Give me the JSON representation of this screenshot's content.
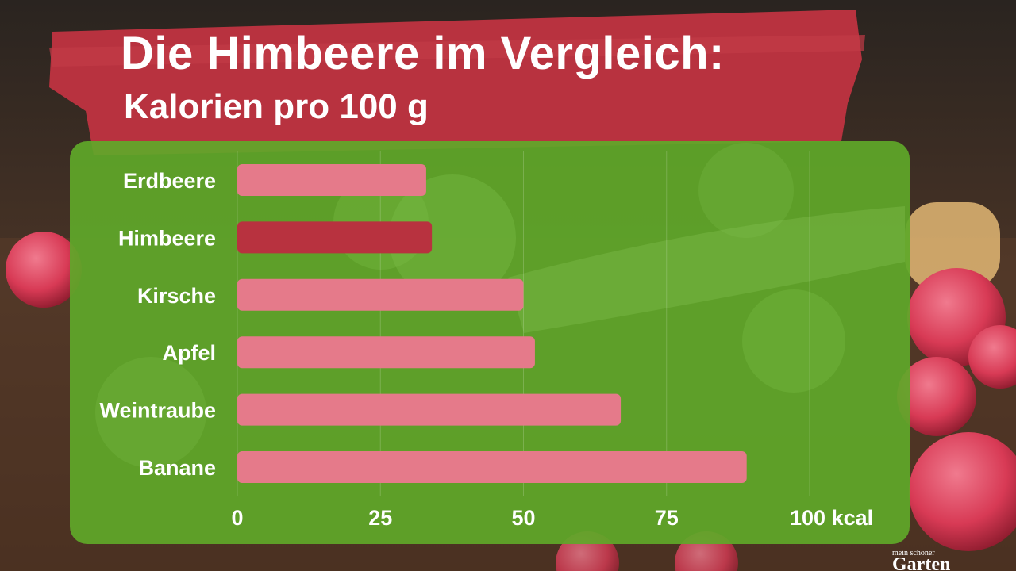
{
  "header": {
    "title": "Die Himbeere im Vergleich:",
    "subtitle": "Kalorien pro 100 g"
  },
  "colors": {
    "title_band": "#b8323f",
    "panel": "#5fa829",
    "bar": "#e57a8a",
    "bar_highlight": "#b8323f",
    "text": "#ffffff"
  },
  "watermark": {
    "text": "mein schöner Garten"
  },
  "chart_data": {
    "type": "bar",
    "orientation": "horizontal",
    "categories": [
      "Erdbeere",
      "Himbeere",
      "Kirsche",
      "Apfel",
      "Weintraube",
      "Banane"
    ],
    "values": [
      33,
      34,
      50,
      52,
      67,
      89
    ],
    "highlight": "Himbeere",
    "xlim": [
      0,
      100
    ],
    "ticks": [
      "0",
      "25",
      "50",
      "75",
      "100 kcal"
    ],
    "tick_values": [
      0,
      25,
      50,
      75,
      100
    ],
    "grid": true
  }
}
